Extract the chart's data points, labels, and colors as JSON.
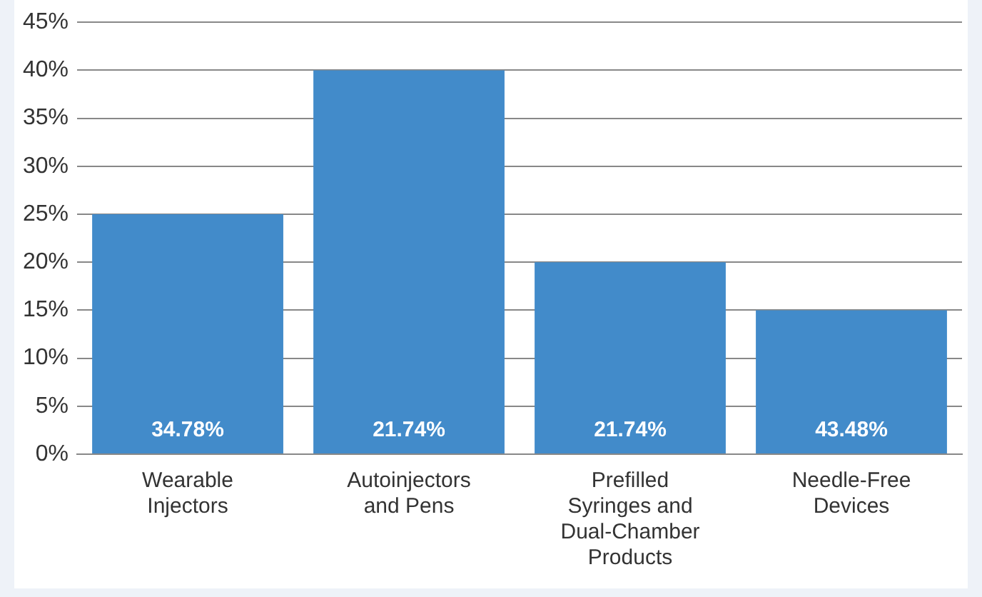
{
  "chart_data": {
    "type": "bar",
    "categories": [
      "Wearable Injectors",
      "Autoinjectors and Pens",
      "Prefilled Syringes and Dual-Chamber Products",
      "Needle-Free Devices"
    ],
    "values": [
      25,
      40,
      20,
      15
    ],
    "color": "#428bca",
    "annotations": [
      "34.78%",
      "21.74%",
      "21.74%",
      "43.48%"
    ],
    "ylim": [
      0,
      45
    ],
    "yticks": [
      {
        "value": 0,
        "label": "0%"
      },
      {
        "value": 5,
        "label": "5%"
      },
      {
        "value": 10,
        "label": "10%"
      },
      {
        "value": 15,
        "label": "15%"
      },
      {
        "value": 20,
        "label": "20%"
      },
      {
        "value": 25,
        "label": "25%"
      },
      {
        "value": 30,
        "label": "30%"
      },
      {
        "value": 35,
        "label": "35%"
      },
      {
        "value": 40,
        "label": "40%"
      },
      {
        "value": 45,
        "label": "45%"
      }
    ],
    "grid": "y",
    "legend": false
  }
}
